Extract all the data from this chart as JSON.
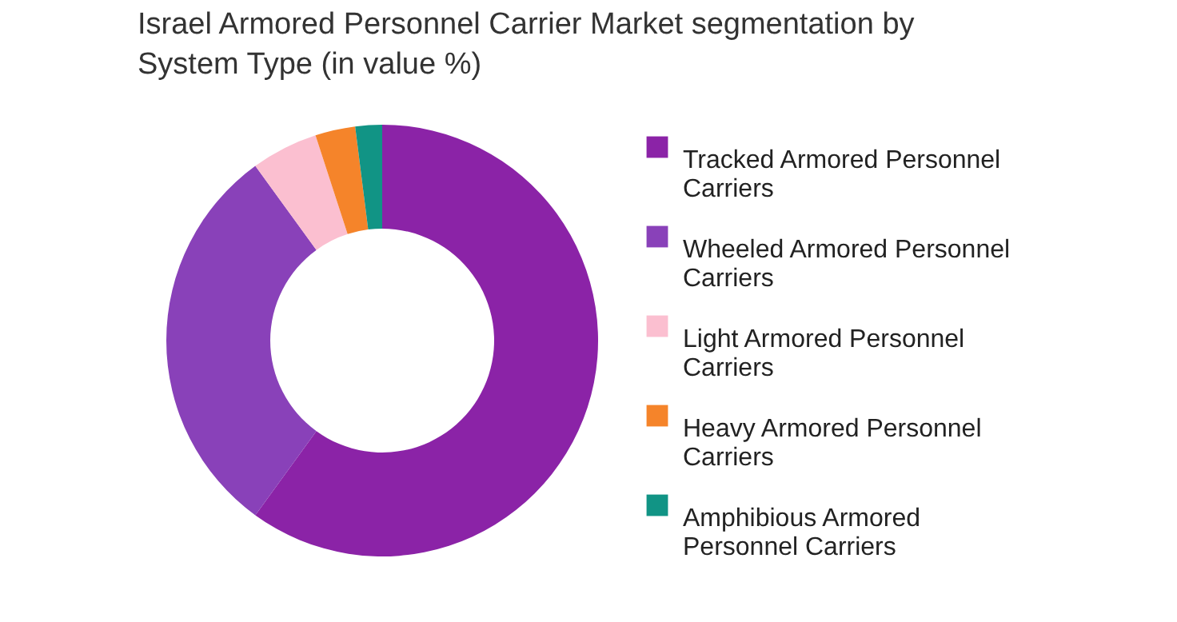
{
  "chart_data": {
    "type": "donut",
    "title": "Israel Armored Personnel Carrier Market segmentation by System Type (in value %)",
    "categories": [
      "Tracked Armored Personnel Carriers",
      "Wheeled Armored Personnel Carriers",
      "Light Armored Personnel Carriers",
      "Heavy Armored Personnel Carriers",
      "Amphibious Armored Personnel Carriers"
    ],
    "values": [
      60,
      30,
      5,
      3,
      2
    ],
    "colors": [
      "#8b23a7",
      "#8941b9",
      "#fbbfd0",
      "#f5842a",
      "#119485"
    ],
    "legend": "right"
  }
}
